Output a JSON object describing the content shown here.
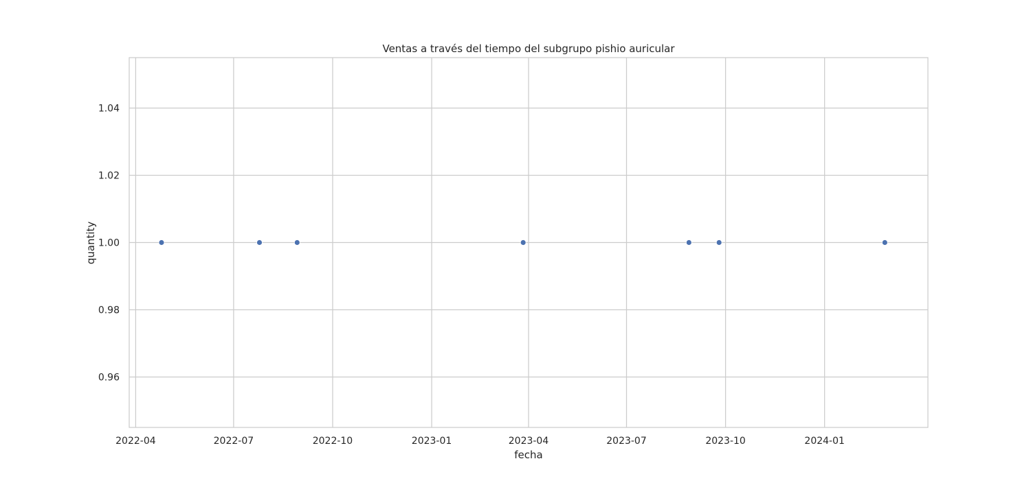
{
  "chart_data": {
    "type": "scatter",
    "title": "Ventas a través del tiempo del subgrupo pishio auricular",
    "xlabel": "fecha",
    "ylabel": "quantity",
    "x_axis_type": "date",
    "xlim": [
      "2022-03-26",
      "2024-04-06"
    ],
    "ylim": [
      0.945,
      1.055
    ],
    "x_ticks": [
      "2022-04",
      "2022-07",
      "2022-10",
      "2023-01",
      "2023-04",
      "2023-07",
      "2023-10",
      "2024-01"
    ],
    "y_ticks": [
      "0.96",
      "0.98",
      "1.00",
      "1.02",
      "1.04"
    ],
    "grid": true,
    "legend": "none",
    "marker_color": "#4c72b0",
    "points": [
      {
        "x": "2022-04-25",
        "y": 1.0
      },
      {
        "x": "2022-07-25",
        "y": 1.0
      },
      {
        "x": "2022-08-29",
        "y": 1.0
      },
      {
        "x": "2023-03-27",
        "y": 1.0
      },
      {
        "x": "2023-08-28",
        "y": 1.0
      },
      {
        "x": "2023-09-25",
        "y": 1.0
      },
      {
        "x": "2024-02-26",
        "y": 1.0
      }
    ]
  }
}
